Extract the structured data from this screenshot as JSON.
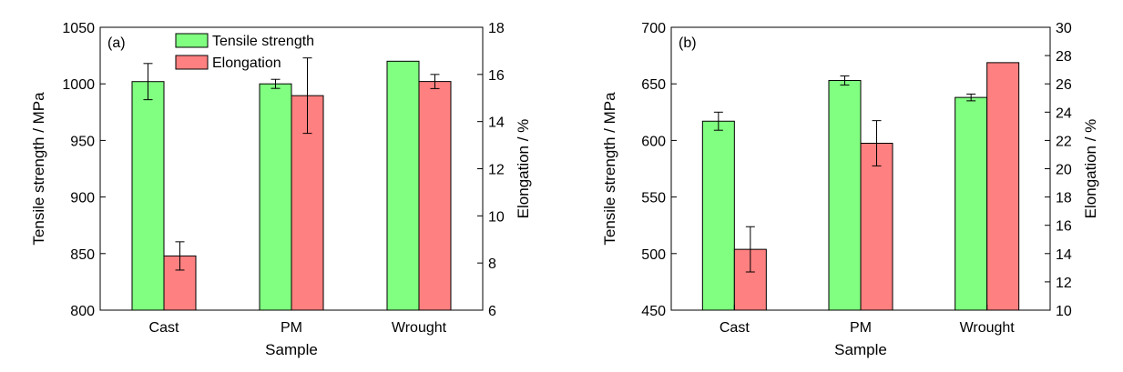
{
  "colors": {
    "tensile": "#80ff80",
    "elongation": "#ff8080",
    "axis": "#000000"
  },
  "chart_data": [
    {
      "type": "bar",
      "panel_label": "(a)",
      "categories": [
        "Cast",
        "PM",
        "Wrought"
      ],
      "xlabel": "Sample",
      "ylabel": "Tensile strength / MPa",
      "y2label": "Elongation / %",
      "ylim": [
        800,
        1050
      ],
      "yticks": [
        800,
        850,
        900,
        950,
        1000,
        1050
      ],
      "y2lim": [
        6,
        18
      ],
      "y2ticks": [
        6,
        8,
        10,
        12,
        14,
        16,
        18
      ],
      "legend": "top-center",
      "series": [
        {
          "name": "Tensile strength",
          "axis": "left",
          "values": [
            1002,
            1000,
            1020
          ],
          "errors": [
            16,
            4,
            0
          ]
        },
        {
          "name": "Elongation",
          "axis": "right",
          "values": [
            8.3,
            15.1,
            15.7
          ],
          "errors": [
            0.6,
            1.6,
            0.3
          ]
        }
      ]
    },
    {
      "type": "bar",
      "panel_label": "(b)",
      "categories": [
        "Cast",
        "PM",
        "Wrought"
      ],
      "xlabel": "Sample",
      "ylabel": "Tensile strength / MPa",
      "y2label": "Elongation / %",
      "ylim": [
        450,
        700
      ],
      "yticks": [
        450,
        500,
        550,
        600,
        650,
        700
      ],
      "y2lim": [
        10,
        30
      ],
      "y2ticks": [
        10,
        12,
        14,
        16,
        18,
        20,
        22,
        24,
        26,
        28,
        30
      ],
      "series": [
        {
          "name": "Tensile strength",
          "axis": "left",
          "values": [
            617,
            653,
            638
          ],
          "errors": [
            8,
            4,
            3
          ]
        },
        {
          "name": "Elongation",
          "axis": "right",
          "values": [
            14.3,
            21.8,
            27.5
          ],
          "errors": [
            1.6,
            1.6,
            0
          ]
        }
      ]
    }
  ]
}
